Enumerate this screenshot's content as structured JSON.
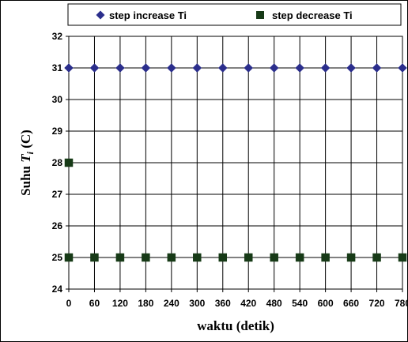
{
  "chart_data": {
    "type": "scatter",
    "xlabel": "waktu (detik)",
    "ylabel_prefix": "Suhu ",
    "ylabel_var": "T",
    "ylabel_sub": "i",
    "ylabel_suffix": " (C)",
    "xlim": [
      0,
      780
    ],
    "ylim": [
      24,
      32
    ],
    "x_ticks": [
      0,
      60,
      120,
      180,
      240,
      300,
      360,
      420,
      480,
      540,
      600,
      660,
      720,
      780
    ],
    "y_ticks": [
      24,
      25,
      26,
      27,
      28,
      29,
      30,
      31,
      32
    ],
    "grid": true,
    "legend_position": "top",
    "series": [
      {
        "name": "step increase Ti",
        "marker": "diamond",
        "color": "#2b2e8c",
        "x": [
          0,
          60,
          120,
          180,
          240,
          300,
          360,
          420,
          480,
          540,
          600,
          660,
          720,
          780
        ],
        "y": [
          31,
          31,
          31,
          31,
          31,
          31,
          31,
          31,
          31,
          31,
          31,
          31,
          31,
          31
        ]
      },
      {
        "name": "step decrease Ti",
        "marker": "square",
        "color": "#173a17",
        "x": [
          0,
          0,
          60,
          120,
          180,
          240,
          300,
          360,
          420,
          480,
          540,
          600,
          660,
          720,
          780
        ],
        "y": [
          28,
          25,
          25,
          25,
          25,
          25,
          25,
          25,
          25,
          25,
          25,
          25,
          25,
          25,
          25
        ]
      }
    ]
  }
}
